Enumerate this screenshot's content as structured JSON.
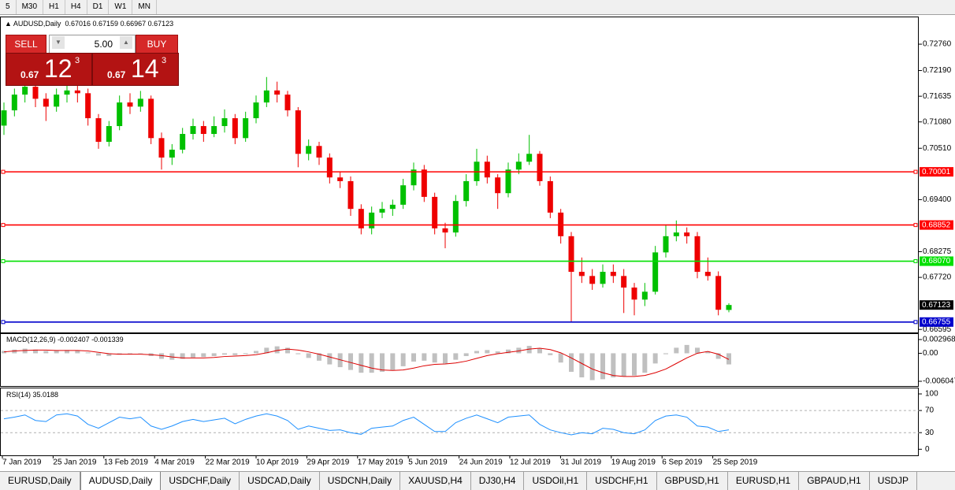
{
  "toolbar": {
    "timeframes": [
      "5",
      "M30",
      "H1",
      "H4",
      "D1",
      "W1",
      "MN"
    ]
  },
  "trade_panel": {
    "sell_label": "SELL",
    "buy_label": "BUY",
    "lot": "5.00",
    "sell_price": {
      "big": "0.67",
      "main": "12",
      "sup": "3"
    },
    "buy_price": {
      "big": "0.67",
      "main": "14",
      "sup": "3"
    }
  },
  "chart": {
    "type": "candlestick",
    "symbol": "AUDUSD,Daily",
    "up_color": "#00c000",
    "down_color": "#ee0000",
    "ylim": [
      0.6653,
      0.7334
    ],
    "yticks": [
      {
        "value": 0.7276,
        "label": "0.72760"
      },
      {
        "value": 0.7219,
        "label": "0.72190"
      },
      0.71635,
      {
        "value": 0.7108,
        "label": "0.71080"
      },
      {
        "value": 0.7051,
        "label": "0.70510"
      },
      {
        "value": 0.694,
        "label": "0.69400"
      },
      0.68275,
      {
        "value": 0.6772,
        "label": "0.67720"
      },
      0.66595
    ],
    "levels": [
      {
        "value": 0.70001,
        "color": "#ff0000"
      },
      {
        "value": 0.68852,
        "color": "#ff0000"
      },
      {
        "value": {
          "value": 0.6807,
          "label": "0.68070"
        },
        "color": "#00e000"
      },
      {
        "value": 0.66755,
        "color": "#0000cc"
      }
    ],
    "current": 0.67123,
    "x_labels": [
      "7 Jan 2019",
      "25 Jan 2019",
      "13 Feb 2019",
      "4 Mar 2019",
      "22 Mar 2019",
      "10 Apr 2019",
      "29 Apr 2019",
      "17 May 2019",
      "5 Jun 2019",
      "24 Jun 2019",
      "12 Jul 2019",
      "31 Jul 2019",
      "19 Aug 2019",
      "6 Sep 2019",
      "25 Sep 2019"
    ],
    "ohlc": [
      [
        0.71,
        0.715,
        0.708,
        0.7133
      ],
      [
        0.7133,
        0.718,
        0.712,
        0.7167
      ],
      [
        0.7167,
        0.72,
        0.715,
        0.7184
      ],
      [
        0.7184,
        0.7195,
        0.714,
        0.7158
      ],
      [
        0.7158,
        0.717,
        0.711,
        0.7141
      ],
      [
        0.7141,
        0.718,
        0.713,
        0.7167
      ],
      [
        0.7167,
        0.7195,
        0.715,
        0.7176
      ],
      [
        0.7176,
        0.719,
        0.715,
        0.717
      ],
      [
        0.717,
        0.718,
        0.71,
        0.7116
      ],
      [
        0.7116,
        0.7125,
        0.705,
        0.7065
      ],
      [
        0.7065,
        0.711,
        0.7055,
        0.7099
      ],
      [
        0.7099,
        0.7165,
        0.709,
        0.715
      ],
      [
        0.715,
        0.717,
        0.7125,
        0.7141
      ],
      [
        0.7141,
        0.7175,
        0.713,
        0.7158
      ],
      [
        0.7158,
        0.7165,
        0.706,
        0.7073
      ],
      [
        0.7073,
        0.7085,
        0.7005,
        0.7031
      ],
      [
        0.7031,
        0.706,
        0.7015,
        0.7048
      ],
      [
        0.7048,
        0.7095,
        0.704,
        0.7082
      ],
      [
        0.7082,
        0.7115,
        0.707,
        0.7099
      ],
      [
        0.7099,
        0.711,
        0.7065,
        0.7082
      ],
      [
        0.7082,
        0.712,
        0.7075,
        0.7099
      ],
      [
        0.7099,
        0.7135,
        0.7085,
        0.7116
      ],
      [
        0.7116,
        0.7125,
        0.706,
        0.7073
      ],
      [
        0.7073,
        0.713,
        0.7065,
        0.7116
      ],
      [
        0.7116,
        0.7165,
        0.7105,
        0.715
      ],
      [
        0.715,
        0.7205,
        0.714,
        0.7176
      ],
      [
        0.7176,
        0.7195,
        0.715,
        0.7167
      ],
      [
        0.7167,
        0.7175,
        0.712,
        0.7133
      ],
      [
        0.7133,
        0.714,
        0.701,
        0.7039
      ],
      [
        0.7039,
        0.707,
        0.7025,
        0.7056
      ],
      [
        0.7056,
        0.7065,
        0.7015,
        0.7031
      ],
      [
        0.7031,
        0.704,
        0.6975,
        0.6988
      ],
      [
        0.6988,
        0.7,
        0.6965,
        0.698
      ],
      [
        0.698,
        0.699,
        0.6905,
        0.692
      ],
      [
        0.692,
        0.693,
        0.6865,
        0.6878
      ],
      [
        0.6878,
        0.6925,
        0.6865,
        0.6912
      ],
      [
        0.6912,
        0.6935,
        0.69,
        0.692
      ],
      [
        0.692,
        0.694,
        0.6905,
        0.6929
      ],
      [
        0.6929,
        0.6985,
        0.692,
        0.6971
      ],
      [
        0.6971,
        0.702,
        0.696,
        0.7005
      ],
      [
        0.7005,
        0.7015,
        0.6935,
        0.6946
      ],
      [
        0.6946,
        0.6955,
        0.6865,
        0.6878
      ],
      [
        0.6878,
        0.689,
        0.6835,
        0.6869
      ],
      [
        0.6869,
        0.695,
        0.686,
        0.6937
      ],
      [
        0.6937,
        0.6995,
        0.6925,
        0.698
      ],
      [
        0.698,
        0.705,
        0.697,
        0.7022
      ],
      [
        0.7022,
        0.7035,
        0.6975,
        0.6988
      ],
      [
        0.6988,
        0.6995,
        0.692,
        0.6954
      ],
      [
        0.6954,
        0.702,
        0.6945,
        0.7005
      ],
      [
        0.7005,
        0.704,
        0.6995,
        0.7022
      ],
      [
        0.7022,
        0.708,
        0.7015,
        0.7039
      ],
      [
        0.7039,
        0.7045,
        0.697,
        0.698
      ],
      [
        0.698,
        0.699,
        0.69,
        0.6912
      ],
      [
        0.6912,
        0.692,
        0.6845,
        0.6861
      ],
      [
        0.6861,
        0.687,
        0.6676,
        0.6784
      ],
      [
        0.6784,
        0.6815,
        0.676,
        0.6775
      ],
      [
        0.6775,
        0.679,
        0.6745,
        0.6758
      ],
      [
        0.6758,
        0.68,
        0.675,
        0.6784
      ],
      [
        0.6784,
        0.68,
        0.676,
        0.6775
      ],
      [
        0.6775,
        0.679,
        0.6695,
        0.675
      ],
      [
        0.675,
        0.676,
        0.669,
        0.6724
      ],
      [
        0.6724,
        0.676,
        0.671,
        0.6741
      ],
      [
        0.6741,
        0.684,
        0.6735,
        0.6826
      ],
      [
        0.6826,
        0.6885,
        0.6815,
        0.6861
      ],
      [
        0.6861,
        0.6895,
        0.685,
        0.6869
      ],
      [
        0.6869,
        0.688,
        0.6845,
        0.6861
      ],
      [
        0.6861,
        0.687,
        0.677,
        0.6784
      ],
      [
        0.6784,
        0.6815,
        0.6765,
        0.6775
      ],
      [
        0.6775,
        0.6785,
        0.669,
        0.6702
      ],
      [
        0.67016,
        0.67159,
        0.66967,
        0.67123
      ]
    ]
  },
  "macd": {
    "type": "histogram-line",
    "title": "MACD(12,26,9)",
    "hist_color": "#c0c0c0",
    "signal_color": "#dd0000",
    "ylim": [
      -0.00707,
      0.00416
    ],
    "yticks": [
      0.002968,
      {
        "value": 0,
        "label": "0.00"
      },
      -0.006047
    ],
    "hist": [
      0.0005,
      0.0008,
      0.001,
      0.0008,
      0.0005,
      0.0006,
      0.0007,
      0.0006,
      0.0002,
      -0.0005,
      -0.0006,
      -0.0003,
      -0.0002,
      0,
      -0.0006,
      -0.0012,
      -0.0014,
      -0.0012,
      -0.0009,
      -0.0008,
      -0.0006,
      -0.0003,
      -0.0004,
      -0.0002,
      0.0005,
      0.0012,
      0.0015,
      0.0012,
      -0.0002,
      -0.001,
      -0.0016,
      -0.0024,
      -0.003,
      -0.0036,
      -0.0042,
      -0.0042,
      -0.004,
      -0.0036,
      -0.0028,
      -0.0018,
      -0.0016,
      -0.002,
      -0.0022,
      -0.0014,
      -0.0006,
      0.0005,
      0.0007,
      0.0004,
      0.0008,
      0.0012,
      0.0016,
      0.001,
      -0.0004,
      -0.002,
      -0.004,
      -0.0052,
      -0.0058,
      -0.0056,
      -0.0052,
      -0.005,
      -0.0048,
      -0.0042,
      -0.0022,
      -0.0002,
      0.0012,
      0.0018,
      0.0012,
      0.0004,
      -0.0012,
      -0.002407
    ],
    "signal": [
      0.0003,
      0.0005,
      0.0006,
      0.0007,
      0.0007,
      0.0006,
      0.0006,
      0.0006,
      0.0005,
      0.0002,
      -0.0001,
      -0.0002,
      -0.0002,
      -0.0002,
      -0.0003,
      -0.0005,
      -0.0008,
      -0.001,
      -0.001,
      -0.001,
      -0.0009,
      -0.0007,
      -0.0006,
      -0.0005,
      -0.0003,
      0.0001,
      0.0006,
      0.0009,
      0.0007,
      0.0003,
      -0.0002,
      -0.0008,
      -0.0014,
      -0.002,
      -0.0026,
      -0.0032,
      -0.0036,
      -0.0037,
      -0.0036,
      -0.0032,
      -0.0027,
      -0.0024,
      -0.0023,
      -0.0021,
      -0.0017,
      -0.0011,
      -0.0005,
      -0.0001,
      0.0002,
      0.0005,
      0.0009,
      0.0011,
      0.0008,
      0.0001,
      -0.001,
      -0.0022,
      -0.0034,
      -0.0042,
      -0.0048,
      -0.005,
      -0.005,
      -0.0048,
      -0.0042,
      -0.0034,
      -0.0022,
      -0.001,
      0.0,
      0.0004,
      -0.0002,
      -0.001339
    ]
  },
  "rsi": {
    "type": "line",
    "title": "RSI(14)",
    "color": "#1e90ff",
    "ylim": [
      -11,
      110
    ],
    "yticks": [
      100,
      70,
      30,
      0
    ],
    "levels": [
      70,
      30
    ],
    "values": [
      55,
      58,
      62,
      52,
      50,
      62,
      64,
      60,
      45,
      38,
      48,
      58,
      55,
      58,
      42,
      36,
      42,
      50,
      54,
      50,
      53,
      56,
      46,
      54,
      60,
      64,
      60,
      52,
      36,
      42,
      38,
      34,
      35,
      30,
      27,
      38,
      40,
      42,
      52,
      58,
      45,
      32,
      32,
      48,
      56,
      62,
      55,
      48,
      58,
      60,
      62,
      45,
      35,
      30,
      26,
      30,
      28,
      38,
      36,
      30,
      28,
      35,
      52,
      60,
      62,
      58,
      42,
      40,
      32,
      35.0188
    ]
  },
  "tabs": [
    "EURUSD,Daily",
    "AUDUSD,Daily",
    "USDCHF,Daily",
    "USDCAD,Daily",
    "USDCNH,Daily",
    "XAUUSD,H4",
    "DJ30,H4",
    "USDOil,H1",
    "USDCHF,H1",
    "GBPUSD,H1",
    "EURUSD,H1",
    "GBPAUD,H1",
    "USDJP"
  ],
  "active_tab": 1
}
